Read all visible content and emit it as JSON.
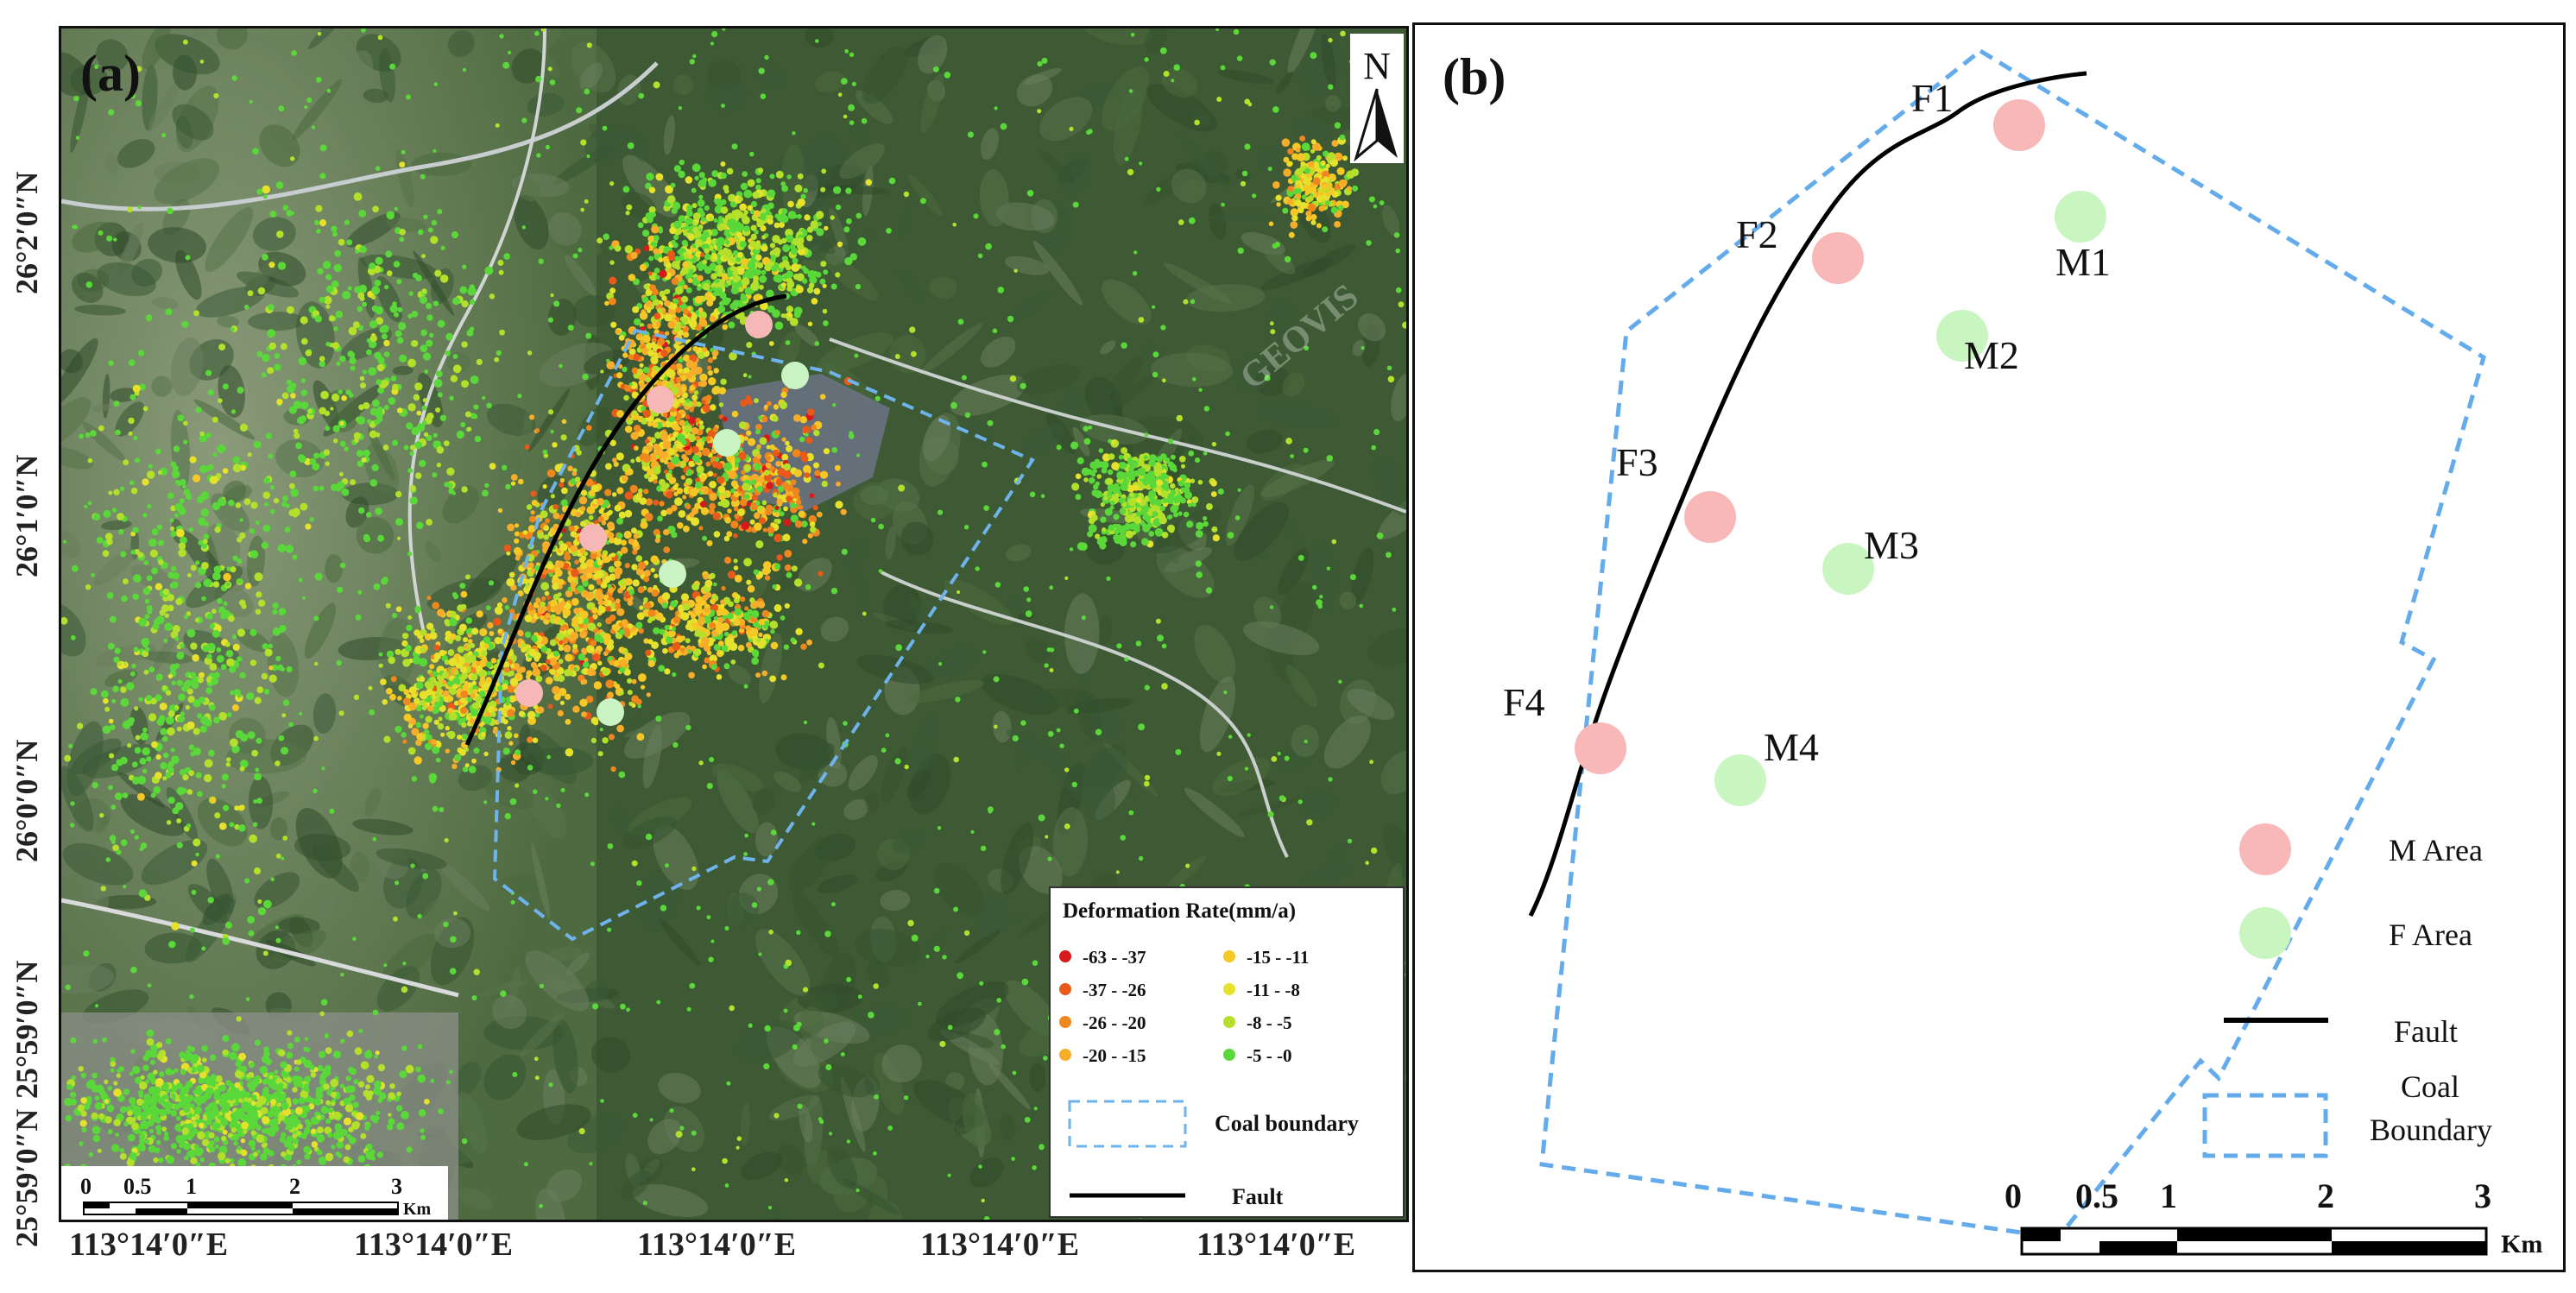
{
  "panel_a": {
    "label": "(a)",
    "north_label": "N",
    "watermark": "GEOVIS",
    "y_ticks": [
      "26°2′0″N",
      "26°1′0″N",
      "26°0′0″N",
      "25°59′0″N",
      "25°59′0″N"
    ],
    "x_ticks": [
      "113°14′0″E",
      "113°14′0″E",
      "113°14′0″E",
      "113°14′0″E",
      "113°14′0″E"
    ],
    "scalebar": {
      "ticks": [
        "0",
        "0.5",
        "1",
        "2",
        "3"
      ],
      "unit": "Km"
    },
    "legend": {
      "title": "Deformation Rate(mm/a)",
      "classes": [
        {
          "label": "-63 - -37",
          "color": "#d7191c"
        },
        {
          "label": "-37 - -26",
          "color": "#e8591a"
        },
        {
          "label": "-26 - -20",
          "color": "#f0871e"
        },
        {
          "label": "-20 - -15",
          "color": "#f7ac2a"
        },
        {
          "label": "-15 - -11",
          "color": "#f5c826"
        },
        {
          "label": "-11 - -8",
          "color": "#e6e22c"
        },
        {
          "label": "-8 - -5",
          "color": "#b4e02c"
        },
        {
          "label": "-5 - -0",
          "color": "#5ad83a"
        }
      ],
      "coal_label": "Coal boundary",
      "fault_label": "Fault"
    }
  },
  "panel_b": {
    "label": "(b)",
    "points": [
      {
        "label": "F1",
        "type": "M"
      },
      {
        "label": "F2",
        "type": "M"
      },
      {
        "label": "F3",
        "type": "M"
      },
      {
        "label": "F4",
        "type": "M"
      },
      {
        "label": "M1",
        "type": "F"
      },
      {
        "label": "M2",
        "type": "F"
      },
      {
        "label": "M3",
        "type": "F"
      },
      {
        "label": "M4",
        "type": "F"
      }
    ],
    "legend": {
      "m_area": "M Area",
      "f_area": "F Area",
      "fault": "Fault",
      "coal_line1": "Coal",
      "coal_line2": "Boundary"
    },
    "scalebar": {
      "ticks": [
        "0",
        "0.5",
        "1",
        "2",
        "3"
      ],
      "unit": "Km"
    }
  },
  "colors": {
    "m_area": "#f8b8b8",
    "f_area": "#c8f5c0",
    "coal_boundary": "#5aa9e6",
    "fault": "#000000"
  }
}
